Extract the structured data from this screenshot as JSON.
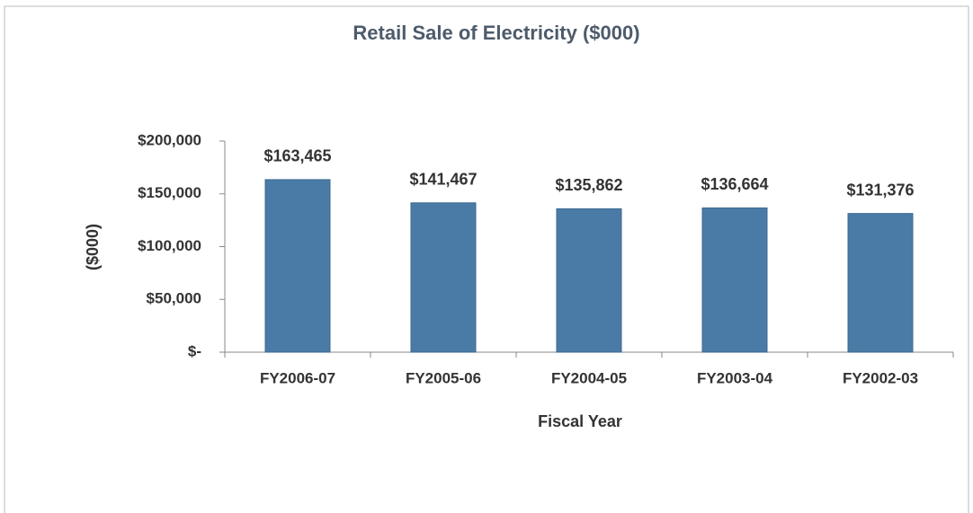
{
  "chart_data": {
    "type": "bar",
    "title": "Retail Sale of Electricity ($000)",
    "x_label": "Fiscal Year",
    "y_label": "($000)",
    "categories": [
      "FY2006-07",
      "FY2005-06",
      "FY2004-05",
      "FY2003-04",
      "FY2002-03"
    ],
    "values": [
      163465,
      141467,
      135862,
      136664,
      131376
    ],
    "value_labels": [
      "$163,465",
      "$141,467",
      "$135,862",
      "$136,664",
      "$131,376"
    ],
    "color": "#4a7ba6",
    "ylim": [
      0,
      200000
    ],
    "yticks": [
      {
        "value": 0,
        "label": "$-"
      },
      {
        "value": 50000,
        "label": "$50,000"
      },
      {
        "value": 100000,
        "label": "$100,000"
      },
      {
        "value": 150000,
        "label": "$150,000"
      },
      {
        "value": 200000,
        "label": "$200,000"
      }
    ],
    "grid": false
  }
}
